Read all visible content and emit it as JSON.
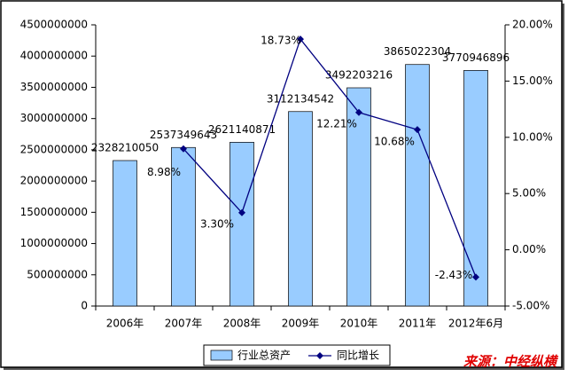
{
  "chart_data": {
    "type": "bar-line",
    "categories": [
      "2006年",
      "2007年",
      "2008年",
      "2009年",
      "2010年",
      "2011年",
      "2012年6月"
    ],
    "series": [
      {
        "name": "行业总资产",
        "type": "bar",
        "color": "#99ccff",
        "values": [
          2328210050,
          2537349643,
          2621140871,
          3112134542,
          3492203216,
          3865022304,
          3770946896
        ]
      },
      {
        "name": "同比增长",
        "type": "line",
        "axis": "y2",
        "color": "#000080",
        "values": [
          null,
          8.98,
          3.3,
          18.73,
          12.21,
          10.68,
          -2.43
        ],
        "value_labels": [
          null,
          "8.98%",
          "3.30%",
          "18.73%",
          "12.21%",
          "10.68%",
          "-2.43%"
        ]
      }
    ],
    "ylim": [
      0,
      4500000000
    ],
    "yticks": [
      0,
      500000000,
      1000000000,
      1500000000,
      2000000000,
      2500000000,
      3000000000,
      3500000000,
      4000000000,
      4500000000
    ],
    "y2lim": [
      -5,
      20
    ],
    "y2ticks": [
      {
        "value": -5,
        "label": "-5.00%"
      },
      {
        "value": 0,
        "label": "0.00%"
      },
      {
        "value": 5,
        "label": "5.00%"
      },
      {
        "value": 10,
        "label": "10.00%"
      },
      {
        "value": 15,
        "label": "15.00%"
      },
      {
        "value": 20,
        "label": "20.00%"
      }
    ],
    "grid": false,
    "legend": "bottom",
    "source": "来源：中经纵横"
  }
}
